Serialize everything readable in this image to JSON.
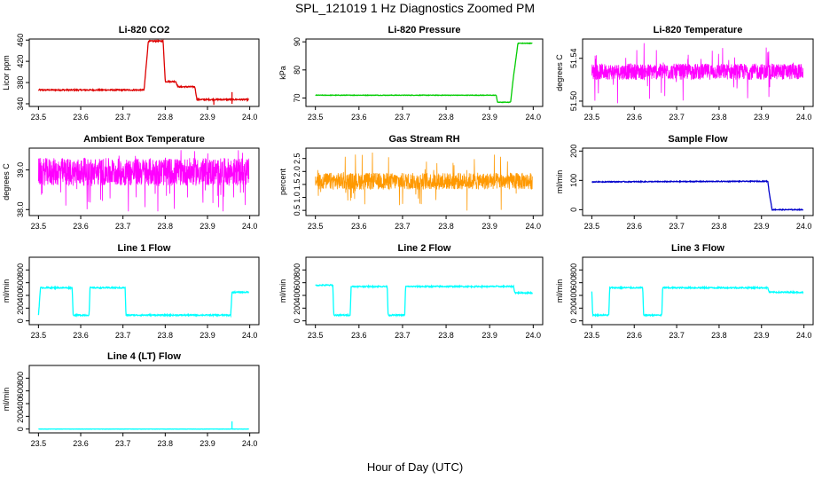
{
  "figure": {
    "title": "SPL_121019  1 Hz Diagnostics Zoomed PM",
    "xlabel": "Hour of Day (UTC)"
  },
  "chart_data": [
    {
      "type": "line",
      "title": "Li-820 CO2",
      "ylabel": "Licor ppm",
      "color": "#dd0000",
      "xlim": [
        23.5,
        24.0
      ],
      "ylim": [
        335,
        462
      ],
      "xticks": [
        23.5,
        23.6,
        23.7,
        23.8,
        23.9,
        24.0
      ],
      "xtick_labels": [
        "23.5",
        "23.6",
        "23.7",
        "23.8",
        "23.9",
        "24.0"
      ],
      "yticks": [
        340,
        380,
        420,
        460
      ],
      "ytick_labels": [
        "340",
        "380",
        "420",
        "460"
      ],
      "noise": 1.2,
      "series": [
        {
          "x": [
            23.5,
            23.75,
            23.76,
            23.795,
            23.8,
            23.825,
            23.83,
            23.87,
            23.875,
            23.998
          ],
          "y": [
            366,
            366,
            458,
            458,
            382,
            382,
            372,
            372,
            348,
            348
          ]
        }
      ],
      "spikes": [
        {
          "x": 23.915,
          "y": 338
        },
        {
          "x": 23.958,
          "y": 362
        },
        {
          "x": 23.958,
          "y": 340
        }
      ]
    },
    {
      "type": "line",
      "title": "Li-820 Pressure",
      "ylabel": "kPa",
      "color": "#00cc00",
      "xlim": [
        23.5,
        24.0
      ],
      "ylim": [
        67,
        91
      ],
      "xticks": [
        23.5,
        23.6,
        23.7,
        23.8,
        23.9,
        24.0
      ],
      "xtick_labels": [
        "23.5",
        "23.6",
        "23.7",
        "23.8",
        "23.9",
        "24.0"
      ],
      "yticks": [
        70,
        80,
        90
      ],
      "ytick_labels": [
        "70",
        "80",
        "90"
      ],
      "noise": 0.1,
      "series": [
        {
          "x": [
            23.5,
            23.915,
            23.918,
            23.948,
            23.955,
            23.962,
            23.965,
            23.998
          ],
          "y": [
            71,
            71,
            68.5,
            68.5,
            78,
            86,
            89.5,
            89.5
          ]
        }
      ]
    },
    {
      "type": "band",
      "title": "Li-820 Temperature",
      "ylabel": "degrees C",
      "color": "#ff00ff",
      "xlim": [
        23.5,
        24.0
      ],
      "ylim": [
        51.495,
        51.558
      ],
      "xticks": [
        23.5,
        23.6,
        23.7,
        23.8,
        23.9,
        24.0
      ],
      "xtick_labels": [
        "23.5",
        "23.6",
        "23.7",
        "23.8",
        "23.9",
        "24.0"
      ],
      "yticks": [
        51.5,
        51.54
      ],
      "ytick_labels": [
        "51.50",
        "51.54"
      ],
      "base": [
        51.52,
        51.535
      ],
      "spike_range": [
        51.497,
        51.555
      ],
      "dense": true
    },
    {
      "type": "band",
      "title": "Ambient Box Temperature",
      "ylabel": "degrees C",
      "color": "#ff00ff",
      "xlim": [
        23.5,
        24.0
      ],
      "ylim": [
        37.85,
        39.55
      ],
      "xticks": [
        23.5,
        23.6,
        23.7,
        23.8,
        23.9,
        24.0
      ],
      "xtick_labels": [
        "23.5",
        "23.6",
        "23.7",
        "23.8",
        "23.9",
        "24.0"
      ],
      "yticks": [
        38.0,
        39.0
      ],
      "ytick_labels": [
        "38.0",
        "39.0"
      ],
      "base": [
        38.6,
        39.3
      ],
      "spike_range": [
        37.95,
        39.5
      ],
      "dense": true
    },
    {
      "type": "band",
      "title": "Gas Stream RH",
      "ylabel": "percent",
      "color": "#ff9900",
      "xlim": [
        23.5,
        24.0
      ],
      "ylim": [
        0.3,
        2.9
      ],
      "xticks": [
        23.5,
        23.6,
        23.7,
        23.8,
        23.9,
        24.0
      ],
      "xtick_labels": [
        "23.5",
        "23.6",
        "23.7",
        "23.8",
        "23.9",
        "24.0"
      ],
      "yticks": [
        0.5,
        1.0,
        1.5,
        2.0,
        2.5
      ],
      "ytick_labels": [
        "0.5",
        "1.0",
        "1.5",
        "2.0",
        "2.5"
      ],
      "base": [
        1.3,
        1.95
      ],
      "spike_range": [
        0.45,
        2.8
      ],
      "dense": true
    },
    {
      "type": "line",
      "title": "Sample Flow",
      "ylabel": "ml/min",
      "color": "#0000cc",
      "xlim": [
        23.5,
        24.0
      ],
      "ylim": [
        -20,
        210
      ],
      "xticks": [
        23.5,
        23.6,
        23.7,
        23.8,
        23.9,
        24.0
      ],
      "xtick_labels": [
        "23.5",
        "23.6",
        "23.7",
        "23.8",
        "23.9",
        "24.0"
      ],
      "yticks": [
        0,
        100,
        200
      ],
      "ytick_labels": [
        "0",
        "100",
        "200"
      ],
      "noise": 1.5,
      "series": [
        {
          "x": [
            23.5,
            23.915,
            23.918,
            23.925,
            23.998
          ],
          "y": [
            95,
            97,
            60,
            0,
            0
          ]
        }
      ]
    },
    {
      "type": "line",
      "title": "Line 1 Flow",
      "ylabel": "ml/min",
      "color": "#00ffff",
      "xlim": [
        23.5,
        24.0
      ],
      "ylim": [
        -60,
        1000
      ],
      "xticks": [
        23.5,
        23.6,
        23.7,
        23.8,
        23.9,
        24.0
      ],
      "xtick_labels": [
        "23.5",
        "23.6",
        "23.7",
        "23.8",
        "23.9",
        "24.0"
      ],
      "yticks": [
        0,
        200,
        400,
        600,
        800
      ],
      "ytick_labels": [
        "0",
        "200",
        "400",
        "600",
        "800"
      ],
      "noise": 10,
      "series": [
        {
          "x": [
            23.5,
            23.505,
            23.58,
            23.582,
            23.62,
            23.622,
            23.705,
            23.707,
            23.955,
            23.958,
            23.998
          ],
          "y": [
            100,
            520,
            520,
            90,
            90,
            520,
            520,
            90,
            90,
            450,
            450
          ]
        }
      ]
    },
    {
      "type": "line",
      "title": "Line 2 Flow",
      "ylabel": "ml/min",
      "color": "#00ffff",
      "xlim": [
        23.5,
        24.0
      ],
      "ylim": [
        -60,
        1000
      ],
      "xticks": [
        23.5,
        23.6,
        23.7,
        23.8,
        23.9,
        24.0
      ],
      "xtick_labels": [
        "23.5",
        "23.6",
        "23.7",
        "23.8",
        "23.9",
        "24.0"
      ],
      "yticks": [
        0,
        200,
        400,
        600,
        800
      ],
      "ytick_labels": [
        "0",
        "200",
        "400",
        "600",
        "800"
      ],
      "noise": 10,
      "series": [
        {
          "x": [
            23.5,
            23.54,
            23.542,
            23.58,
            23.582,
            23.665,
            23.667,
            23.705,
            23.707,
            23.955,
            23.958,
            23.998
          ],
          "y": [
            560,
            560,
            90,
            90,
            540,
            540,
            90,
            90,
            540,
            540,
            440,
            440
          ]
        }
      ]
    },
    {
      "type": "line",
      "title": "Line 3 Flow",
      "ylabel": "ml/min",
      "color": "#00ffff",
      "xlim": [
        23.5,
        24.0
      ],
      "ylim": [
        -60,
        1000
      ],
      "xticks": [
        23.5,
        23.6,
        23.7,
        23.8,
        23.9,
        24.0
      ],
      "xtick_labels": [
        "23.5",
        "23.6",
        "23.7",
        "23.8",
        "23.9",
        "24.0"
      ],
      "yticks": [
        0,
        200,
        400,
        600,
        800
      ],
      "ytick_labels": [
        "0",
        "200",
        "400",
        "600",
        "800"
      ],
      "noise": 10,
      "series": [
        {
          "x": [
            23.5,
            23.502,
            23.505,
            23.54,
            23.542,
            23.62,
            23.622,
            23.665,
            23.667,
            23.915,
            23.918,
            23.998
          ],
          "y": [
            470,
            90,
            90,
            90,
            520,
            520,
            90,
            90,
            520,
            520,
            450,
            450
          ]
        }
      ]
    },
    {
      "type": "line",
      "title": "Line 4 (LT) Flow",
      "ylabel": "ml/min",
      "color": "#00ffff",
      "xlim": [
        23.5,
        24.0
      ],
      "ylim": [
        -60,
        1000
      ],
      "xticks": [
        23.5,
        23.6,
        23.7,
        23.8,
        23.9,
        24.0
      ],
      "xtick_labels": [
        "23.5",
        "23.6",
        "23.7",
        "23.8",
        "23.9",
        "24.0"
      ],
      "yticks": [
        0,
        200,
        400,
        600,
        800
      ],
      "ytick_labels": [
        "0",
        "200",
        "400",
        "600",
        "800"
      ],
      "noise": 2,
      "series": [
        {
          "x": [
            23.5,
            23.998
          ],
          "y": [
            0,
            0
          ]
        }
      ],
      "spikes": [
        {
          "x": 23.958,
          "y": 120
        }
      ]
    }
  ]
}
